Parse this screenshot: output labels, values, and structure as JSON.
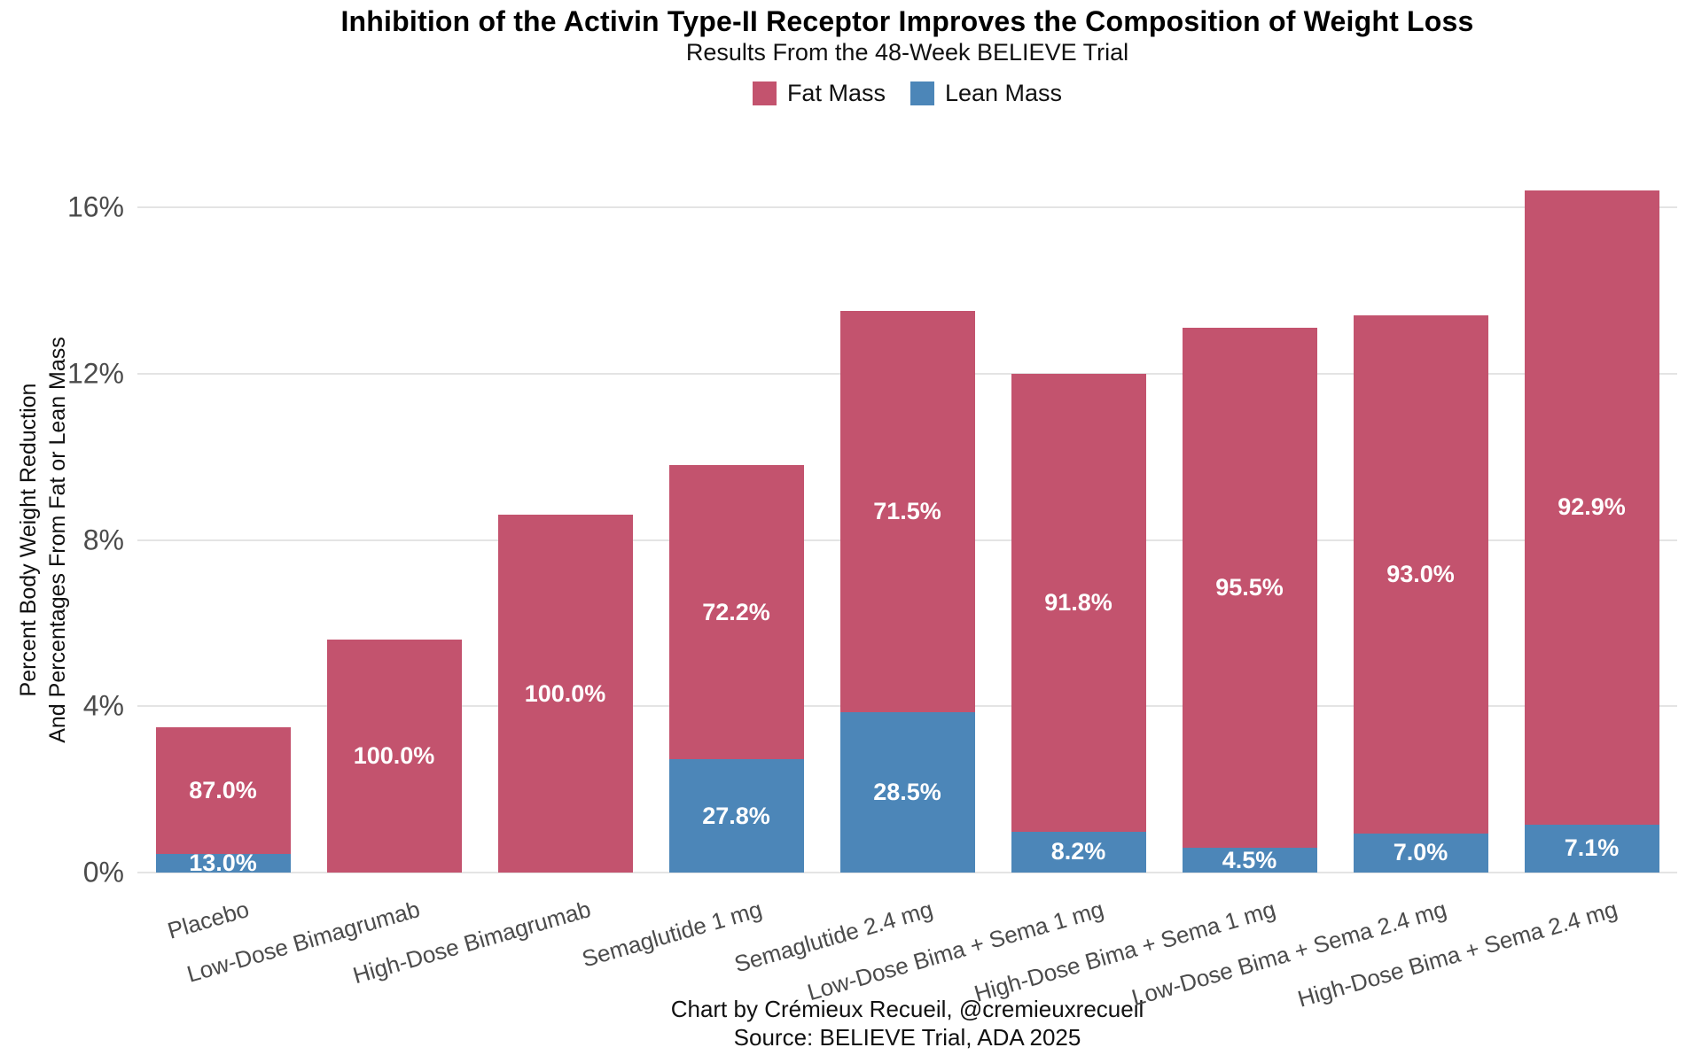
{
  "title": "Inhibition of the Activin Type-II Receptor Improves the Composition of Weight Loss",
  "subtitle": "Results From the 48-Week BELIEVE Trial",
  "legend": {
    "items": [
      {
        "label": "Fat Mass",
        "color": "#C3536E"
      },
      {
        "label": "Lean Mass",
        "color": "#4C86B8"
      }
    ]
  },
  "y_axis": {
    "title_line1": "Percent Body Weight Reduction",
    "title_line2": "And Percentages From Fat or Lean Mass",
    "tick_labels": [
      "0%",
      "4%",
      "8%",
      "12%",
      "16%"
    ]
  },
  "footer": {
    "line1": "Chart by Crémieux Recueil, @cremieuxrecueil",
    "line2": "Source: BELIEVE Trial, ADA 2025"
  },
  "colors": {
    "fat": "#C3536E",
    "lean": "#4C86B8",
    "gridline": "#E4E4E4"
  },
  "chart_data": {
    "type": "bar",
    "stacked": true,
    "title": "Inhibition of the Activin Type-II Receptor Improves the Composition of Weight Loss",
    "subtitle": "Results From the 48-Week BELIEVE Trial",
    "ylabel": "Percent Body Weight Reduction And Percentages From Fat or Lean Mass",
    "xlabel": "",
    "ylim": [
      0,
      16.6
    ],
    "ytick_values": [
      0,
      4,
      8,
      12,
      16
    ],
    "grid": "horizontal",
    "legend_position": "top",
    "categories": [
      "Placebo",
      "Low-Dose Bimagrumab",
      "High-Dose Bimagrumab",
      "Semaglutide 1 mg",
      "Semaglutide 2.4 mg",
      "Low-Dose Bima + Sema 1 mg",
      "High-Dose Bima + Sema 1 mg",
      "Low-Dose Bima + Sema 2.4 mg",
      "High-Dose Bima + Sema 2.4 mg"
    ],
    "total_weight_reduction_pct": [
      3.5,
      5.6,
      8.6,
      9.8,
      13.5,
      12.0,
      13.1,
      13.4,
      16.4
    ],
    "series": [
      {
        "name": "Lean Mass",
        "values": [
          0.45,
          0,
          0,
          2.72,
          3.85,
          0.98,
          0.59,
          0.94,
          1.16
        ]
      },
      {
        "name": "Fat Mass",
        "values": [
          3.05,
          5.6,
          8.6,
          7.08,
          9.65,
          11.02,
          12.51,
          12.46,
          15.24
        ]
      }
    ],
    "fat_share_labels": [
      "87.0%",
      "100.0%",
      "100.0%",
      "72.2%",
      "71.5%",
      "91.8%",
      "95.5%",
      "93.0%",
      "92.9%"
    ],
    "lean_share_labels": [
      "13.0%",
      "",
      "",
      "27.8%",
      "28.5%",
      "8.2%",
      "4.5%",
      "7.0%",
      "7.1%"
    ]
  }
}
